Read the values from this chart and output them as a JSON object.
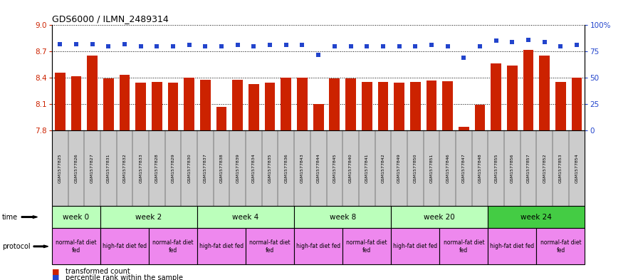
{
  "title": "GDS6000 / ILMN_2489314",
  "samples": [
    "GSM1577825",
    "GSM1577826",
    "GSM1577827",
    "GSM1577831",
    "GSM1577832",
    "GSM1577833",
    "GSM1577828",
    "GSM1577829",
    "GSM1577830",
    "GSM1577837",
    "GSM1577838",
    "GSM1577839",
    "GSM1577834",
    "GSM1577835",
    "GSM1577836",
    "GSM1577843",
    "GSM1577844",
    "GSM1577845",
    "GSM1577840",
    "GSM1577841",
    "GSM1577842",
    "GSM1577849",
    "GSM1577850",
    "GSM1577851",
    "GSM1577846",
    "GSM1577847",
    "GSM1577848",
    "GSM1577855",
    "GSM1577856",
    "GSM1577857",
    "GSM1577852",
    "GSM1577853",
    "GSM1577854"
  ],
  "transformed_count": [
    8.46,
    8.42,
    8.65,
    8.39,
    8.43,
    8.34,
    8.35,
    8.34,
    8.4,
    8.38,
    8.07,
    8.38,
    8.33,
    8.34,
    8.4,
    8.4,
    8.1,
    8.39,
    8.39,
    8.35,
    8.35,
    8.34,
    8.35,
    8.37,
    8.36,
    7.84,
    8.09,
    8.56,
    8.54,
    8.72,
    8.65,
    8.35,
    8.4
  ],
  "percentile_rank": [
    82,
    82,
    82,
    80,
    82,
    80,
    80,
    80,
    81,
    80,
    80,
    81,
    80,
    81,
    81,
    81,
    72,
    80,
    80,
    80,
    80,
    80,
    80,
    81,
    80,
    69,
    80,
    85,
    84,
    86,
    84,
    80,
    81
  ],
  "ylim_left": [
    7.8,
    9.0
  ],
  "ylim_right": [
    0,
    100
  ],
  "yticks_left": [
    7.8,
    8.1,
    8.4,
    8.7,
    9.0
  ],
  "yticks_right": [
    0,
    25,
    50,
    75,
    100
  ],
  "bar_color": "#cc2200",
  "dot_color": "#2244cc",
  "time_groups": [
    {
      "label": "week 0",
      "start": 0,
      "end": 2,
      "color": "#bbffbb"
    },
    {
      "label": "week 2",
      "start": 3,
      "end": 8,
      "color": "#bbffbb"
    },
    {
      "label": "week 4",
      "start": 9,
      "end": 14,
      "color": "#bbffbb"
    },
    {
      "label": "week 8",
      "start": 15,
      "end": 20,
      "color": "#bbffbb"
    },
    {
      "label": "week 20",
      "start": 21,
      "end": 26,
      "color": "#bbffbb"
    },
    {
      "label": "week 24",
      "start": 27,
      "end": 32,
      "color": "#44cc44"
    }
  ],
  "protocol_groups": [
    {
      "label": "normal-fat diet\nfed",
      "start": 0,
      "end": 2
    },
    {
      "label": "high-fat diet fed",
      "start": 3,
      "end": 5
    },
    {
      "label": "normal-fat diet\nfed",
      "start": 6,
      "end": 8
    },
    {
      "label": "high-fat diet fed",
      "start": 9,
      "end": 11
    },
    {
      "label": "normal-fat diet\nfed",
      "start": 12,
      "end": 14
    },
    {
      "label": "high-fat diet fed",
      "start": 15,
      "end": 17
    },
    {
      "label": "normal-fat diet\nfed",
      "start": 18,
      "end": 20
    },
    {
      "label": "high-fat diet fed",
      "start": 21,
      "end": 23
    },
    {
      "label": "normal-fat diet\nfed",
      "start": 24,
      "end": 26
    },
    {
      "label": "high-fat diet fed",
      "start": 27,
      "end": 29
    },
    {
      "label": "normal-fat diet\nfed",
      "start": 30,
      "end": 32
    }
  ],
  "protocol_color": "#ee88ee",
  "sample_bg_color": "#cccccc",
  "fig_width": 8.89,
  "fig_height": 3.93,
  "dpi": 100
}
